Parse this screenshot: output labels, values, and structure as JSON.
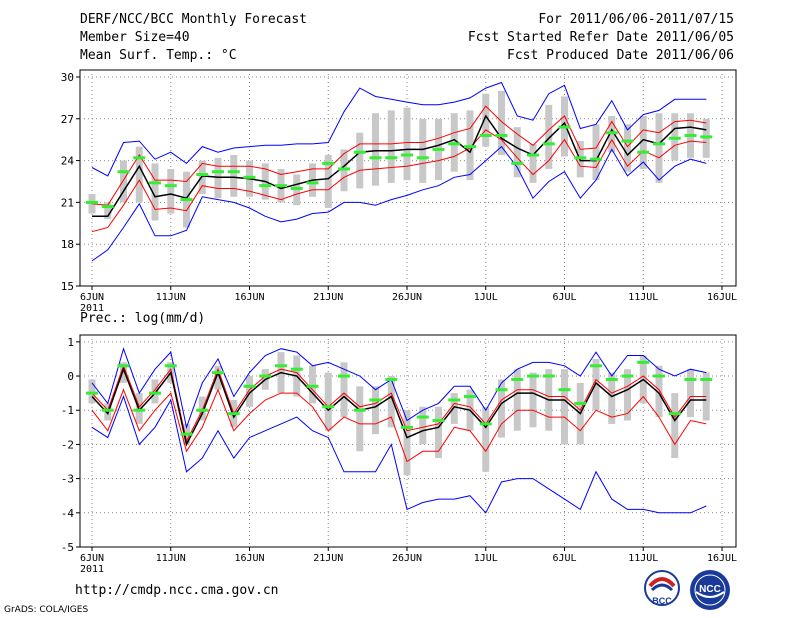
{
  "header": {
    "title": "DERF/NCC/BCC Monthly Forecast",
    "member_size": "Member Size=40",
    "variable": "Mean Surf. Temp.: °C",
    "period": "For 2011/06/06-2011/07/15",
    "started": "Fcst Started Refer Date 2011/06/05",
    "produced": "Fcst Produced Date 2011/06/06"
  },
  "footer": {
    "url": "http://cmdp.ncc.cma.gov.cn",
    "grads": "GrADS: COLA/IGES",
    "logo_bcc": "BCC",
    "logo_ncc": "NCC"
  },
  "colors": {
    "envelope": "#0000ff",
    "spread": "#ff0000",
    "mean": "#000000",
    "box": "#c8c8c8",
    "median": "#33ee33",
    "grid": "#888888"
  },
  "chart_data": [
    {
      "type": "line",
      "title": "Mean Surf. Temp.: °C",
      "x_tick_labels": [
        "6JUN",
        "11JUN",
        "16JUN",
        "21JUN",
        "26JUN",
        "1JUL",
        "6JUL",
        "11JUL",
        "16JUL"
      ],
      "x_tick_days": [
        0,
        5,
        10,
        15,
        20,
        25,
        30,
        35,
        40
      ],
      "year_label": "2011",
      "ylim": [
        15,
        30.5
      ],
      "y_ticks": [
        15,
        18,
        21,
        24,
        27,
        30
      ],
      "x_days": [
        0,
        1,
        2,
        3,
        4,
        5,
        6,
        7,
        8,
        9,
        10,
        11,
        12,
        13,
        14,
        15,
        16,
        17,
        18,
        19,
        20,
        21,
        22,
        23,
        24,
        25,
        26,
        27,
        28,
        29,
        30,
        31,
        32,
        33,
        34,
        35,
        36,
        37,
        38,
        39
      ],
      "series": [
        {
          "name": "max",
          "values": [
            16.8,
            17.6,
            19.2,
            20.9,
            18.6,
            18.6,
            19.0,
            21.4,
            21.2,
            21.0,
            20.6,
            20.0,
            19.6,
            19.8,
            20.2,
            20.3,
            21.0,
            21.0,
            20.8,
            21.2,
            21.5,
            21.9,
            22.2,
            22.8,
            23.0,
            24.0,
            25.0,
            23.5,
            21.3,
            22.5,
            23.2,
            21.3,
            22.6,
            24.8,
            22.9,
            23.9,
            22.6,
            23.6,
            24.1,
            23.8
          ]
        },
        {
          "name": "max_upper",
          "values": [
            23.5,
            22.9,
            25.3,
            25.4,
            24.1,
            24.6,
            23.8,
            25.0,
            24.6,
            24.9,
            25.0,
            25.1,
            25.1,
            25.2,
            25.2,
            25.3,
            27.5,
            29.2,
            28.6,
            28.4,
            28.2,
            28.0,
            28.0,
            28.2,
            28.5,
            29.2,
            29.6,
            27.2,
            26.9,
            28.8,
            29.4,
            26.3,
            26.6,
            28.3,
            26.2,
            27.3,
            27.6,
            28.4,
            28.4,
            28.4
          ]
        },
        {
          "name": "spread_low",
          "values": [
            18.9,
            19.2,
            20.8,
            22.6,
            20.5,
            20.6,
            20.4,
            22.2,
            22.0,
            22.0,
            21.8,
            21.5,
            21.2,
            21.6,
            21.9,
            21.9,
            22.8,
            23.3,
            23.4,
            23.5,
            23.6,
            23.8,
            24.0,
            24.3,
            24.9,
            26.2,
            25.5,
            24.2,
            23.0,
            24.0,
            25.5,
            23.6,
            23.5,
            25.5,
            23.6,
            24.7,
            24.2,
            25.1,
            25.4,
            25.3
          ]
        },
        {
          "name": "spread_high",
          "values": [
            20.9,
            20.8,
            22.6,
            24.4,
            22.6,
            22.6,
            22.5,
            23.8,
            23.6,
            23.6,
            23.6,
            23.4,
            23.0,
            23.2,
            23.4,
            23.4,
            24.5,
            25.2,
            25.2,
            25.2,
            25.3,
            25.3,
            25.6,
            26.0,
            26.3,
            27.9,
            26.8,
            25.9,
            25.1,
            26.2,
            27.2,
            24.8,
            24.9,
            26.8,
            25.0,
            26.2,
            26.0,
            26.8,
            26.9,
            26.7
          ]
        },
        {
          "name": "ensemble_mean",
          "values": [
            20.0,
            20.0,
            21.8,
            23.6,
            21.4,
            21.6,
            21.3,
            22.9,
            22.8,
            22.8,
            22.7,
            22.5,
            22.0,
            22.3,
            22.6,
            22.7,
            23.6,
            24.6,
            24.7,
            24.7,
            24.8,
            24.8,
            25.1,
            25.5,
            24.6,
            27.2,
            25.6,
            24.9,
            24.4,
            25.6,
            26.7,
            24.0,
            24.0,
            26.2,
            24.4,
            25.5,
            25.2,
            26.3,
            26.4,
            26.2
          ]
        },
        {
          "name": "median",
          "values": [
            21.0,
            20.7,
            23.2,
            24.2,
            22.4,
            22.2,
            21.2,
            23.0,
            23.2,
            23.2,
            22.8,
            22.2,
            22.2,
            22.0,
            22.4,
            23.8,
            23.4,
            24.6,
            24.2,
            24.2,
            24.4,
            24.2,
            24.8,
            25.2,
            25.0,
            25.8,
            25.8,
            23.8,
            24.4,
            25.2,
            26.4,
            24.2,
            24.1,
            26.0,
            25.4,
            24.6,
            25.2,
            25.6,
            25.8,
            25.7
          ]
        },
        {
          "name": "box_low",
          "values": [
            20.2,
            19.8,
            21.0,
            21.0,
            19.7,
            20.2,
            19.2,
            21.6,
            21.3,
            21.4,
            21.4,
            21.2,
            21.0,
            20.8,
            21.4,
            20.6,
            21.8,
            22.0,
            22.2,
            22.4,
            22.6,
            22.4,
            22.6,
            23.2,
            22.6,
            25.0,
            24.4,
            22.8,
            22.4,
            23.4,
            24.3,
            22.8,
            22.6,
            24.6,
            23.2,
            23.4,
            22.4,
            24.0,
            24.2,
            24.2
          ]
        },
        {
          "name": "box_high",
          "values": [
            21.6,
            21.0,
            24.0,
            25.0,
            23.8,
            23.4,
            23.2,
            24.0,
            24.2,
            24.4,
            24.0,
            23.8,
            23.4,
            23.0,
            23.8,
            24.4,
            24.8,
            26.0,
            27.4,
            27.6,
            27.8,
            27.0,
            27.0,
            27.4,
            27.6,
            28.8,
            29.0,
            26.4,
            25.2,
            28.0,
            28.6,
            25.4,
            26.6,
            27.2,
            26.6,
            27.2,
            27.4,
            27.4,
            27.4,
            27.0
          ]
        }
      ]
    },
    {
      "type": "line",
      "title": "Prec.: log(mm/d)",
      "x_tick_labels": [
        "6JUN",
        "11JUN",
        "16JUN",
        "21JUN",
        "26JUN",
        "1JUL",
        "6JUL",
        "11JUL",
        "16JUL"
      ],
      "x_tick_days": [
        0,
        5,
        10,
        15,
        20,
        25,
        30,
        35,
        40
      ],
      "year_label": "2011",
      "ylim": [
        -5,
        1.2
      ],
      "y_ticks": [
        -5,
        -4,
        -3,
        -2,
        -1,
        0,
        1
      ],
      "x_days": [
        0,
        1,
        2,
        3,
        4,
        5,
        6,
        7,
        8,
        9,
        10,
        11,
        12,
        13,
        14,
        15,
        16,
        17,
        18,
        19,
        20,
        21,
        22,
        23,
        24,
        25,
        26,
        27,
        28,
        29,
        30,
        31,
        32,
        33,
        34,
        35,
        36,
        37,
        38,
        39
      ],
      "series": [
        {
          "name": "min",
          "values": [
            -1.5,
            -1.8,
            -0.6,
            -2.0,
            -1.5,
            -0.7,
            -2.8,
            -2.4,
            -1.6,
            -2.4,
            -1.8,
            -1.6,
            -1.4,
            -1.2,
            -1.6,
            -1.8,
            -2.8,
            -2.8,
            -2.8,
            -2.0,
            -3.9,
            -3.7,
            -3.6,
            -3.6,
            -3.5,
            -4.0,
            -3.1,
            -3.0,
            -3.0,
            -3.3,
            -3.6,
            -3.9,
            -2.8,
            -3.6,
            -3.9,
            -3.9,
            -4.0,
            -4.0,
            -4.0,
            -3.8
          ]
        },
        {
          "name": "max",
          "values": [
            -0.2,
            -0.8,
            0.8,
            -0.5,
            0.2,
            0.7,
            -1.5,
            -0.2,
            0.5,
            -0.6,
            0.1,
            0.6,
            0.8,
            0.7,
            0.3,
            0.4,
            0.2,
            0.0,
            -0.4,
            -0.1,
            -1.3,
            -1.0,
            -0.8,
            -0.3,
            -0.3,
            -1.0,
            -0.2,
            0.2,
            0.4,
            0.4,
            0.3,
            0.0,
            0.7,
            0.0,
            0.6,
            0.6,
            0.2,
            0.0,
            0.2,
            0.1
          ]
        },
        {
          "name": "spread_high",
          "values": [
            -0.5,
            -1.0,
            0.3,
            -0.9,
            -0.4,
            0.2,
            -1.9,
            -1.0,
            0.2,
            -1.1,
            -0.4,
            0.0,
            0.2,
            0.1,
            -0.4,
            -0.9,
            -0.5,
            -0.9,
            -0.8,
            -0.5,
            -1.6,
            -1.5,
            -1.4,
            -0.8,
            -0.9,
            -1.4,
            -0.7,
            -0.4,
            -0.4,
            -0.6,
            -0.6,
            -1.0,
            -0.1,
            -0.5,
            -0.3,
            0.0,
            -0.4,
            -1.2,
            -0.6,
            -0.6
          ]
        },
        {
          "name": "ensemble_mean",
          "values": [
            -0.6,
            -1.1,
            0.2,
            -1.0,
            -0.5,
            0.1,
            -2.0,
            -1.1,
            0.1,
            -1.2,
            -0.5,
            -0.1,
            0.1,
            0.0,
            -0.5,
            -1.0,
            -0.6,
            -1.0,
            -0.9,
            -0.6,
            -1.8,
            -1.6,
            -1.5,
            -0.9,
            -1.0,
            -1.5,
            -0.8,
            -0.5,
            -0.5,
            -0.7,
            -0.7,
            -1.1,
            -0.2,
            -0.6,
            -0.4,
            -0.1,
            -0.5,
            -1.3,
            -0.7,
            -0.7
          ]
        },
        {
          "name": "spread_low",
          "values": [
            -1.0,
            -1.6,
            -0.4,
            -1.6,
            -1.0,
            -0.5,
            -2.2,
            -1.5,
            -0.4,
            -1.6,
            -1.1,
            -0.7,
            -0.5,
            -0.5,
            -0.9,
            -1.6,
            -1.2,
            -1.4,
            -1.4,
            -1.2,
            -2.5,
            -2.2,
            -2.2,
            -1.5,
            -1.6,
            -2.2,
            -1.4,
            -1.0,
            -1.0,
            -1.2,
            -1.2,
            -1.6,
            -1.0,
            -1.2,
            -1.1,
            -0.6,
            -1.2,
            -2.0,
            -1.3,
            -1.4
          ]
        },
        {
          "name": "median",
          "values": [
            -0.5,
            -1.0,
            0.3,
            -1.0,
            -0.5,
            0.3,
            -1.7,
            -1.0,
            0.1,
            -1.1,
            -0.3,
            0.0,
            0.3,
            0.2,
            -0.3,
            -0.9,
            0.0,
            -1.0,
            -0.7,
            -0.1,
            -1.5,
            -1.2,
            -1.3,
            -0.7,
            -0.6,
            -1.4,
            -0.4,
            -0.1,
            0.0,
            0.0,
            -0.4,
            -0.8,
            0.3,
            -0.1,
            0.0,
            0.4,
            0.0,
            -1.1,
            -0.1,
            -0.1
          ]
        },
        {
          "name": "box_low",
          "values": [
            -0.8,
            -1.3,
            -0.2,
            -1.4,
            -0.8,
            -0.2,
            -2.0,
            -1.3,
            -0.4,
            -1.5,
            -0.9,
            -0.4,
            -0.5,
            -0.6,
            -0.8,
            -1.6,
            -1.2,
            -2.2,
            -1.7,
            -1.5,
            -2.9,
            -2.0,
            -2.4,
            -1.4,
            -1.6,
            -2.8,
            -1.8,
            -1.6,
            -1.5,
            -1.6,
            -2.0,
            -2.0,
            -1.0,
            -1.4,
            -1.3,
            -0.8,
            -1.2,
            -2.4,
            -1.2,
            -1.3
          ]
        },
        {
          "name": "box_high",
          "values": [
            -0.1,
            -0.8,
            0.4,
            -0.5,
            -0.1,
            0.4,
            -1.4,
            -0.6,
            0.3,
            -0.7,
            0.0,
            0.2,
            0.7,
            0.6,
            0.3,
            0.1,
            0.4,
            -0.3,
            -0.3,
            0.0,
            -1.0,
            -0.9,
            -0.9,
            -0.5,
            -0.4,
            -0.9,
            -0.1,
            0.2,
            0.1,
            0.2,
            0.2,
            -0.2,
            0.5,
            0.1,
            0.2,
            0.6,
            0.3,
            -0.5,
            0.2,
            0.1
          ]
        }
      ]
    }
  ]
}
